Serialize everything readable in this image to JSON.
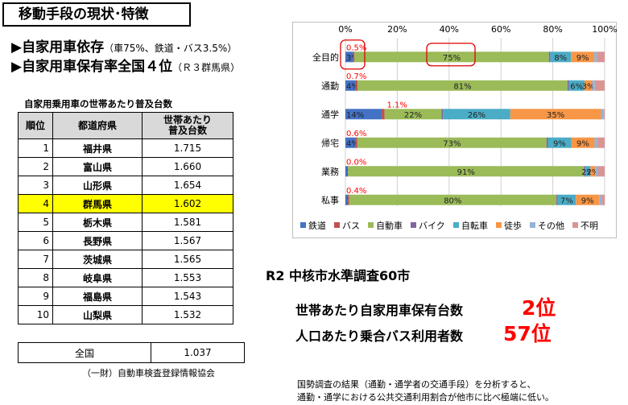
{
  "header": {
    "title": "移動手段の現状･特徴"
  },
  "bullets": [
    {
      "main": "▶自家用車依存",
      "sub": "（車75%、鉄道・バス3.5%）"
    },
    {
      "main": "▶自家用車保有率全国４位",
      "sub": "（Ｒ３群馬県）"
    }
  ],
  "table": {
    "title": "自家用乗用車の世帯あたり普及台数",
    "headers": {
      "rank": "順位",
      "pref": "都道府県",
      "value_line1": "世帯あたり",
      "value_line2": "普及台数"
    },
    "rows": [
      {
        "rank": "1",
        "pref": "福井県",
        "value": "1.715"
      },
      {
        "rank": "2",
        "pref": "富山県",
        "value": "1.660"
      },
      {
        "rank": "3",
        "pref": "山形県",
        "value": "1.654"
      },
      {
        "rank": "4",
        "pref": "群馬県",
        "value": "1.602",
        "highlight": true
      },
      {
        "rank": "5",
        "pref": "栃木県",
        "value": "1.581"
      },
      {
        "rank": "6",
        "pref": "長野県",
        "value": "1.567"
      },
      {
        "rank": "7",
        "pref": "茨城県",
        "value": "1.565"
      },
      {
        "rank": "8",
        "pref": "岐阜県",
        "value": "1.553"
      },
      {
        "rank": "9",
        "pref": "福島県",
        "value": "1.543"
      },
      {
        "rank": "10",
        "pref": "山梨県",
        "value": "1.532"
      }
    ],
    "total": {
      "label": "全国",
      "value": "1.037"
    },
    "source": "（一財）自動車検査登録情報協会"
  },
  "chart_data": {
    "type": "bar",
    "orientation": "horizontal",
    "stacked": true,
    "xlim": [
      0,
      100
    ],
    "x_ticks": [
      "0%",
      "20%",
      "40%",
      "60%",
      "80%",
      "100%"
    ],
    "categories": [
      "全目的",
      "通勤",
      "通学",
      "帰宅",
      "業務",
      "私事"
    ],
    "series": [
      {
        "name": "鉄道",
        "color": "#4472c4",
        "values": [
          3,
          4,
          14,
          4,
          1,
          1
        ],
        "labels": [
          "3%",
          "4%",
          "14%",
          "4%",
          "1%",
          "1%"
        ]
      },
      {
        "name": "バス",
        "color": "#c0504d",
        "values": [
          0.5,
          0.7,
          1.1,
          0.6,
          0.0,
          0.4
        ]
      },
      {
        "name": "自動車",
        "color": "#9bbb59",
        "values": [
          75,
          81,
          22,
          73,
          91,
          80
        ],
        "labels": [
          "75%",
          "81%",
          "22%",
          "73%",
          "91%",
          "80%"
        ]
      },
      {
        "name": "バイク",
        "color": "#8064a2",
        "values": [
          0.5,
          0.5,
          0.5,
          0.5,
          0.5,
          0.5
        ]
      },
      {
        "name": "自転車",
        "color": "#4bacc6",
        "values": [
          8,
          6,
          26,
          9,
          2,
          7
        ],
        "labels": [
          "8%",
          "6%",
          "26%",
          "9%",
          "2%",
          "7%"
        ]
      },
      {
        "name": "徒歩",
        "color": "#f79646",
        "values": [
          9,
          3,
          35,
          9,
          2,
          9
        ],
        "labels": [
          "9%",
          "3%",
          "35%",
          "9%",
          "2%",
          "9%"
        ]
      },
      {
        "name": "その他",
        "color": "#95b3d7",
        "values": [
          1,
          1,
          1,
          1,
          1,
          1
        ]
      },
      {
        "name": "不明",
        "color": "#d99594",
        "values": [
          3,
          3.8,
          0.4,
          2.9,
          2.5,
          1.1
        ]
      }
    ],
    "bus_annotations": [
      "0.5%",
      "0.7%",
      "1.1%",
      "0.6%",
      "0.0%",
      "0.4%"
    ],
    "annotation_color": "#ff0000",
    "highlight_boxes": [
      "鉄道・バス（全目的）",
      "自動車（全目的）"
    ],
    "legend_position": "bottom"
  },
  "survey": {
    "title": "R2 中核市水準調査60市",
    "stats": [
      {
        "label": "世帯あたり自家用車保有台数",
        "value": "2位"
      },
      {
        "label": "人口あたり乗合バス利用者数",
        "value": "57位"
      }
    ]
  },
  "notes": [
    "国勢調査の結果（通勤・通学者の交通手段）を分析すると、",
    "通勤・通学における公共交通利用割合が他市に比べ極端に低い。"
  ]
}
